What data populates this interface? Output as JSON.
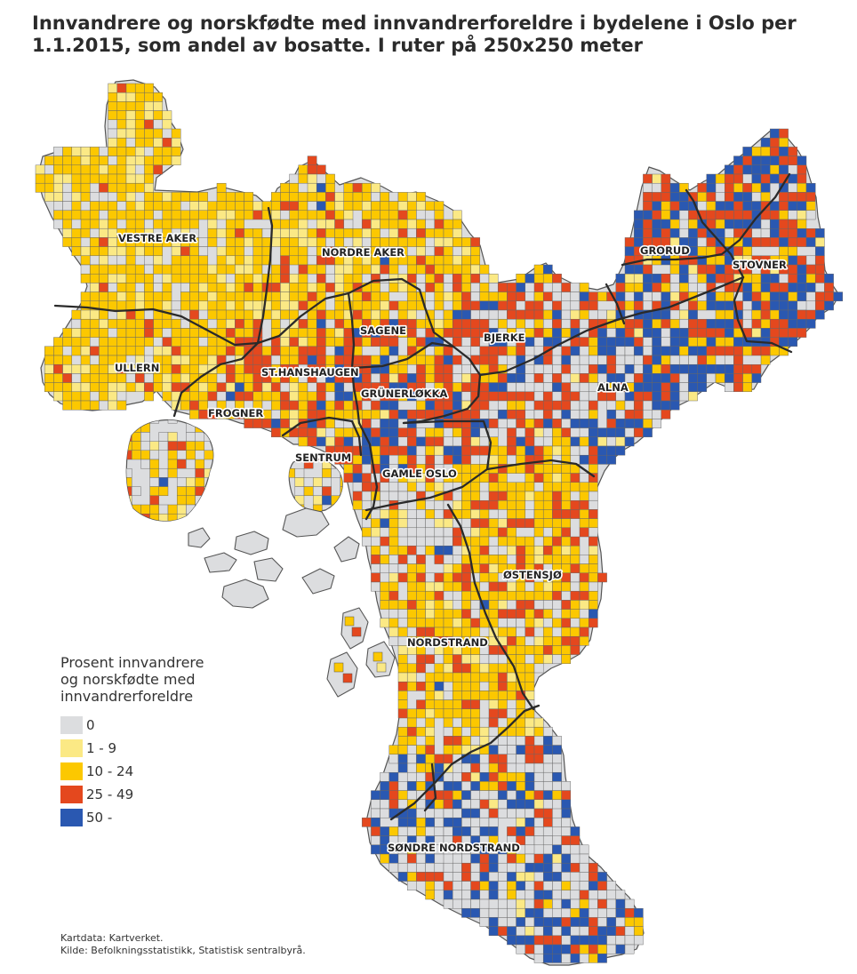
{
  "title": {
    "line1": "Innvandrere og norskfødte med innvandrerforeldre i bydelene i Oslo per",
    "line2": "1.1.2015, som andel av bosatte. I ruter på 250x250 meter"
  },
  "legend": {
    "title_line1": "Prosent innvandrere",
    "title_line2": "og norskfødte med",
    "title_line3": "innvandrerforeldre",
    "items": [
      {
        "label": "0",
        "color": "#dcdddf"
      },
      {
        "label": "1 - 9",
        "color": "#fbe985"
      },
      {
        "label": "10 - 24",
        "color": "#fcc800"
      },
      {
        "label": "25 - 49",
        "color": "#e4481e"
      },
      {
        "label": "50 -",
        "color": "#2a58b1"
      }
    ]
  },
  "districts": [
    {
      "name": "VESTRE AKER",
      "key": "vestre-aker"
    },
    {
      "name": "NORDRE AKER",
      "key": "nordre-aker"
    },
    {
      "name": "GRORUD",
      "key": "grorud"
    },
    {
      "name": "STOVNER",
      "key": "stovner"
    },
    {
      "name": "SAGENE",
      "key": "sagene"
    },
    {
      "name": "BJERKE",
      "key": "bjerke"
    },
    {
      "name": "ULLERN",
      "key": "ullern"
    },
    {
      "name": "ST.HANSHAUGEN",
      "key": "st-hanshaugen"
    },
    {
      "name": "GRÜNERLØKKA",
      "key": "grunerlokka"
    },
    {
      "name": "ALNA",
      "key": "alna"
    },
    {
      "name": "FROGNER",
      "key": "frogner"
    },
    {
      "name": "SENTRUM",
      "key": "sentrum"
    },
    {
      "name": "GAMLE OSLO",
      "key": "gamle-oslo"
    },
    {
      "name": "ØSTENSJØ",
      "key": "ostensjo"
    },
    {
      "name": "NORDSTRAND",
      "key": "nordstrand"
    },
    {
      "name": "SØNDRE NORDSTRAND",
      "key": "sondre-nordstrand"
    }
  ],
  "source": {
    "line1": "Kartdata: Kartverket.",
    "line2": "Kilde: Befolkningsstatistikk, Statistisk sentralbyrå."
  }
}
